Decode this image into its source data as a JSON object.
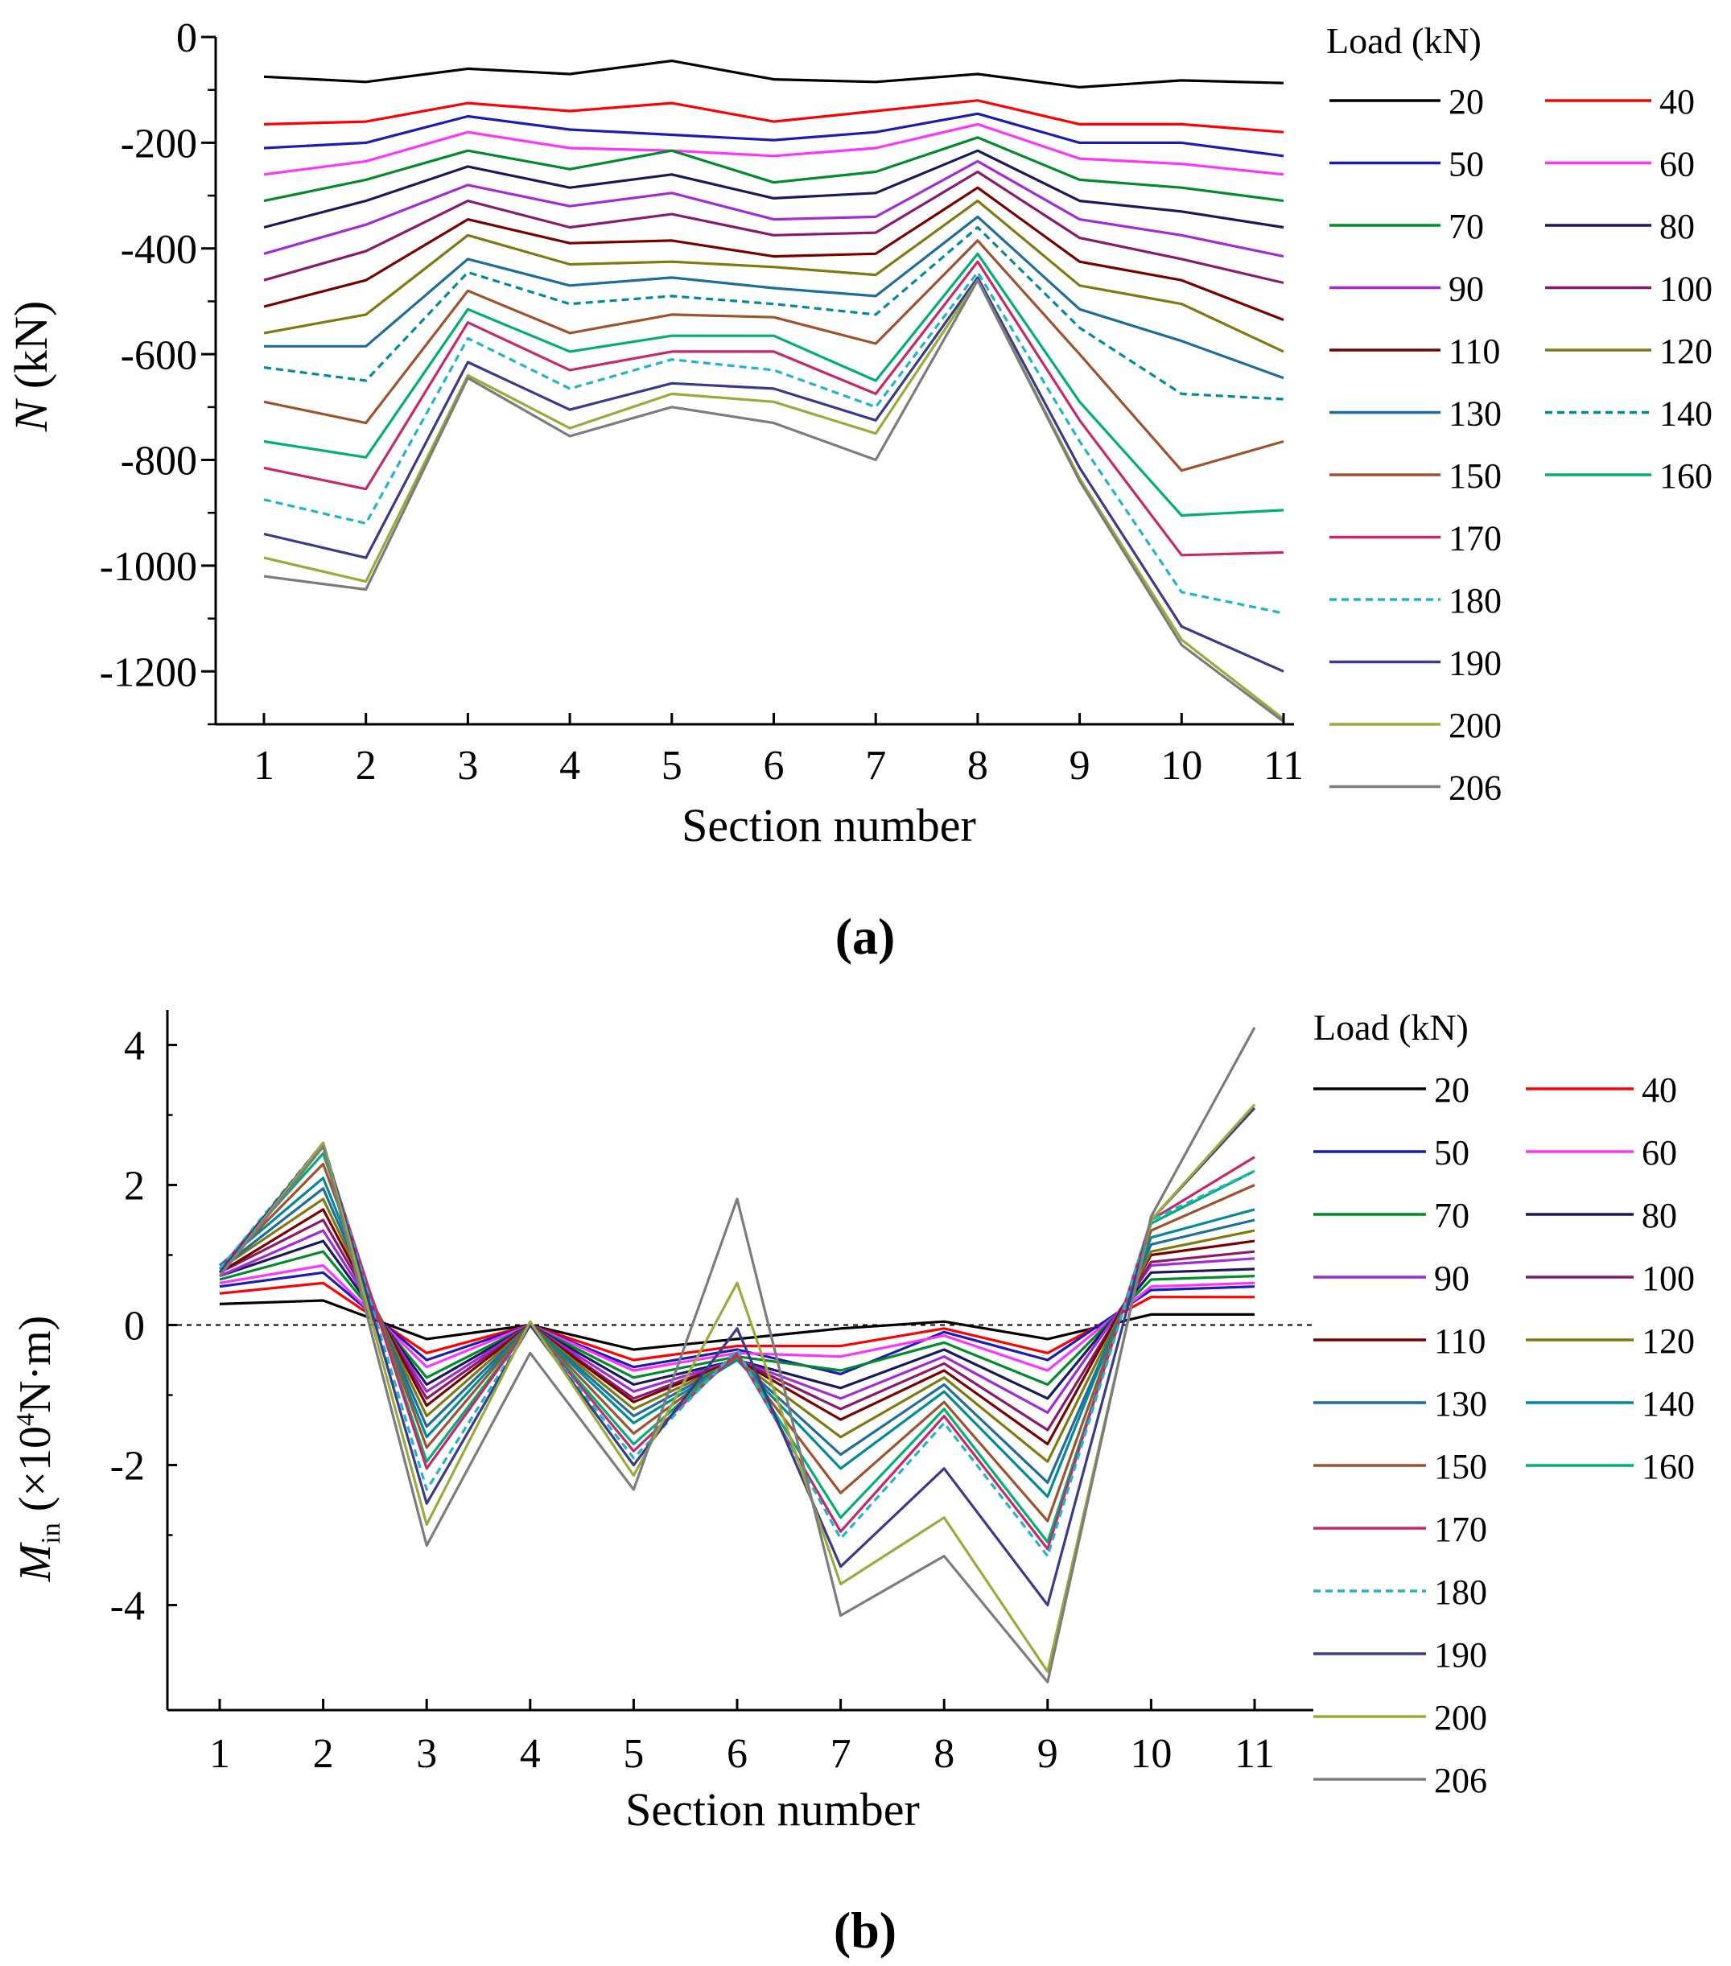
{
  "chart_data": [
    {
      "type": "line",
      "panel_label": "(a)",
      "xlabel": "Section number",
      "ylabel": "N (kN)",
      "ylabel_italic": "N",
      "ylabel_rest": " (kN)",
      "x": [
        1,
        2,
        3,
        4,
        5,
        6,
        7,
        8,
        9,
        10,
        11
      ],
      "xlim": [
        0.5,
        11.2
      ],
      "ylim": [
        -1300,
        0
      ],
      "yticks": [
        0,
        -200,
        -400,
        -600,
        -800,
        -1000,
        -1200
      ],
      "xticks": [
        1,
        2,
        3,
        4,
        5,
        6,
        7,
        8,
        9,
        10,
        11
      ],
      "legend_title": "Load (kN)",
      "legend_placement": "right",
      "series": [
        {
          "name": "20",
          "color": "#000000",
          "dash": "solid",
          "values": [
            -75,
            -85,
            -60,
            -70,
            -45,
            -80,
            -85,
            -70,
            -95,
            -82,
            -87
          ]
        },
        {
          "name": "40",
          "color": "#ff0000",
          "dash": "solid",
          "values": [
            -165,
            -160,
            -125,
            -140,
            -125,
            -160,
            -140,
            -120,
            -165,
            -165,
            -180
          ]
        },
        {
          "name": "50",
          "color": "#1c1cb4",
          "dash": "solid",
          "values": [
            -210,
            -200,
            -150,
            -175,
            -185,
            -195,
            -180,
            -145,
            -200,
            -200,
            -225
          ]
        },
        {
          "name": "60",
          "color": "#ff33ff",
          "dash": "solid",
          "values": [
            -260,
            -235,
            -180,
            -210,
            -215,
            -225,
            -210,
            -165,
            -230,
            -240,
            -260
          ]
        },
        {
          "name": "70",
          "color": "#008c2a",
          "dash": "solid",
          "values": [
            -310,
            -270,
            -215,
            -250,
            -215,
            -275,
            -255,
            -190,
            -270,
            -285,
            -310
          ]
        },
        {
          "name": "80",
          "color": "#1a1a5a",
          "dash": "solid",
          "values": [
            -360,
            -310,
            -245,
            -285,
            -260,
            -305,
            -295,
            -215,
            -310,
            -330,
            -360
          ]
        },
        {
          "name": "90",
          "color": "#a12bd8",
          "dash": "solid",
          "values": [
            -410,
            -355,
            -280,
            -320,
            -295,
            -345,
            -340,
            -235,
            -345,
            -375,
            -415
          ]
        },
        {
          "name": "100",
          "color": "#8b1a6b",
          "dash": "solid",
          "values": [
            -460,
            -405,
            -310,
            -360,
            -335,
            -375,
            -370,
            -255,
            -380,
            -420,
            -465
          ]
        },
        {
          "name": "110",
          "color": "#7a0000",
          "dash": "solid",
          "values": [
            -510,
            -460,
            -345,
            -390,
            -385,
            -415,
            -410,
            -285,
            -425,
            -460,
            -535
          ]
        },
        {
          "name": "120",
          "color": "#7f7a10",
          "dash": "solid",
          "values": [
            -560,
            -525,
            -375,
            -430,
            -425,
            -435,
            -450,
            -310,
            -470,
            -505,
            -595
          ]
        },
        {
          "name": "130",
          "color": "#1f6d9a",
          "dash": "solid",
          "values": [
            -585,
            -585,
            -420,
            -470,
            -455,
            -475,
            -490,
            -340,
            -515,
            -575,
            -645
          ]
        },
        {
          "name": "140",
          "color": "#008b9a",
          "dash": "dashed",
          "values": [
            -625,
            -650,
            -445,
            -505,
            -490,
            -505,
            -525,
            -360,
            -550,
            -675,
            -685
          ]
        },
        {
          "name": "150",
          "color": "#a0522d",
          "dash": "solid",
          "values": [
            -690,
            -730,
            -480,
            -560,
            -525,
            -530,
            -580,
            -385,
            -600,
            -820,
            -765
          ]
        },
        {
          "name": "160",
          "color": "#00b070",
          "dash": "solid",
          "values": [
            -765,
            -795,
            -515,
            -595,
            -565,
            -565,
            -650,
            -410,
            -690,
            -905,
            -895
          ]
        },
        {
          "name": "170",
          "color": "#c7286a",
          "dash": "solid",
          "values": [
            -815,
            -855,
            -540,
            -630,
            -595,
            -595,
            -675,
            -425,
            -725,
            -980,
            -975
          ]
        },
        {
          "name": "180",
          "color": "#1fb5c8",
          "dash": "dashed",
          "values": [
            -875,
            -920,
            -570,
            -665,
            -610,
            -630,
            -700,
            -445,
            -765,
            -1050,
            -1090
          ]
        },
        {
          "name": "190",
          "color": "#3a3a8a",
          "dash": "solid",
          "values": [
            -940,
            -985,
            -615,
            -705,
            -655,
            -665,
            -725,
            -455,
            -815,
            -1115,
            -1200
          ]
        },
        {
          "name": "200",
          "color": "#9aab3c",
          "dash": "solid",
          "values": [
            -985,
            -1030,
            -640,
            -740,
            -675,
            -690,
            -750,
            -460,
            -835,
            -1140,
            -1290
          ]
        },
        {
          "name": "206",
          "color": "#7c7c7c",
          "dash": "solid",
          "values": [
            -1020,
            -1045,
            -645,
            -755,
            -700,
            -730,
            -800,
            -460,
            -840,
            -1150,
            -1295
          ]
        }
      ]
    },
    {
      "type": "line",
      "panel_label": "(b)",
      "xlabel": "Section number",
      "ylabel": "M_in (×10^4 N·m)",
      "ylabel_main": "M",
      "ylabel_sub": "in",
      "ylabel_rest_pre": " (×10",
      "ylabel_sup": "4",
      "ylabel_rest_post": "N·m)",
      "x": [
        1,
        2,
        3,
        4,
        5,
        6,
        7,
        8,
        9,
        10,
        11
      ],
      "xlim": [
        0.5,
        11.3
      ],
      "ylim": [
        -5.5,
        4.5
      ],
      "yticks": [
        4,
        2,
        0,
        -2,
        -4
      ],
      "xticks": [
        1,
        2,
        3,
        4,
        5,
        6,
        7,
        8,
        9,
        10,
        11
      ],
      "reference_line": 0,
      "legend_title": "Load (kN)",
      "legend_placement": "right",
      "series": [
        {
          "name": "20",
          "color": "#000000",
          "dash": "solid",
          "values": [
            0.3,
            0.35,
            -0.2,
            0.0,
            -0.35,
            -0.2,
            -0.05,
            0.05,
            -0.2,
            0.15,
            0.15
          ]
        },
        {
          "name": "40",
          "color": "#ff0000",
          "dash": "solid",
          "values": [
            0.45,
            0.6,
            -0.4,
            0.0,
            -0.5,
            -0.3,
            -0.3,
            -0.05,
            -0.4,
            0.4,
            0.4
          ]
        },
        {
          "name": "50",
          "color": "#1c1cb4",
          "dash": "solid",
          "values": [
            0.55,
            0.75,
            -0.5,
            0.0,
            -0.6,
            -0.35,
            -0.7,
            -0.1,
            -0.5,
            0.5,
            0.55
          ]
        },
        {
          "name": "60",
          "color": "#ff33ff",
          "dash": "solid",
          "values": [
            0.6,
            0.85,
            -0.6,
            0.0,
            -0.65,
            -0.4,
            -0.45,
            -0.15,
            -0.65,
            0.55,
            0.6
          ]
        },
        {
          "name": "70",
          "color": "#008c2a",
          "dash": "solid",
          "values": [
            0.65,
            1.05,
            -0.75,
            0.0,
            -0.75,
            -0.45,
            -0.65,
            -0.25,
            -0.85,
            0.65,
            0.7
          ]
        },
        {
          "name": "80",
          "color": "#1a1a5a",
          "dash": "solid",
          "values": [
            0.7,
            1.2,
            -0.85,
            0.0,
            -0.85,
            -0.5,
            -0.9,
            -0.35,
            -1.05,
            0.75,
            0.8
          ]
        },
        {
          "name": "90",
          "color": "#a12bd8",
          "dash": "solid",
          "values": [
            0.7,
            1.35,
            -0.95,
            0.0,
            -0.95,
            -0.5,
            -1.05,
            -0.45,
            -1.25,
            0.85,
            0.95
          ]
        },
        {
          "name": "100",
          "color": "#8b1a6b",
          "dash": "solid",
          "values": [
            0.75,
            1.5,
            -1.05,
            0.0,
            -1.05,
            -0.5,
            -1.2,
            -0.55,
            -1.5,
            0.9,
            1.05
          ]
        },
        {
          "name": "110",
          "color": "#7a0000",
          "dash": "solid",
          "values": [
            0.75,
            1.65,
            -1.15,
            0.0,
            -1.1,
            -0.5,
            -1.35,
            -0.65,
            -1.7,
            1.0,
            1.2
          ]
        },
        {
          "name": "120",
          "color": "#7f7a10",
          "dash": "solid",
          "values": [
            0.8,
            1.8,
            -1.3,
            0.0,
            -1.2,
            -0.5,
            -1.6,
            -0.75,
            -1.95,
            1.05,
            1.35
          ]
        },
        {
          "name": "130",
          "color": "#1f6d9a",
          "dash": "solid",
          "values": [
            0.8,
            1.95,
            -1.45,
            0.0,
            -1.3,
            -0.5,
            -1.85,
            -0.85,
            -2.25,
            1.15,
            1.5
          ]
        },
        {
          "name": "140",
          "color": "#008b9a",
          "dash": "solid",
          "values": [
            0.85,
            2.1,
            -1.6,
            0.0,
            -1.4,
            -0.5,
            -2.05,
            -0.95,
            -2.45,
            1.25,
            1.65
          ]
        },
        {
          "name": "150",
          "color": "#a0522d",
          "dash": "solid",
          "values": [
            0.8,
            2.3,
            -1.75,
            0.0,
            -1.55,
            -0.45,
            -2.4,
            -1.1,
            -2.8,
            1.35,
            2.0
          ]
        },
        {
          "name": "160",
          "color": "#00b070",
          "dash": "solid",
          "values": [
            0.8,
            2.45,
            -1.95,
            0.0,
            -1.7,
            -0.4,
            -2.75,
            -1.2,
            -3.1,
            1.45,
            2.2
          ]
        },
        {
          "name": "170",
          "color": "#c7286a",
          "dash": "solid",
          "values": [
            0.8,
            2.55,
            -2.05,
            0.0,
            -1.8,
            -0.4,
            -2.95,
            -1.3,
            -3.2,
            1.5,
            2.4
          ]
        },
        {
          "name": "180",
          "color": "#1fb5c8",
          "dash": "dashed",
          "values": [
            0.8,
            2.6,
            -2.35,
            0.0,
            -1.9,
            -0.35,
            -3.05,
            -1.4,
            -3.3,
            1.5,
            2.2
          ]
        },
        {
          "name": "190",
          "color": "#3a3a8a",
          "dash": "solid",
          "values": [
            0.75,
            2.6,
            -2.55,
            0.0,
            -2.0,
            -0.05,
            -3.45,
            -2.05,
            -4.0,
            1.5,
            3.1
          ]
        },
        {
          "name": "200",
          "color": "#9aab3c",
          "dash": "solid",
          "values": [
            0.7,
            2.6,
            -2.85,
            0.05,
            -2.15,
            0.6,
            -3.7,
            -2.75,
            -4.95,
            1.5,
            3.15
          ]
        },
        {
          "name": "206",
          "color": "#7c7c7c",
          "dash": "solid",
          "values": [
            0.7,
            2.55,
            -3.15,
            -0.4,
            -2.35,
            1.8,
            -4.15,
            -3.3,
            -5.1,
            1.55,
            4.25
          ]
        }
      ]
    }
  ]
}
